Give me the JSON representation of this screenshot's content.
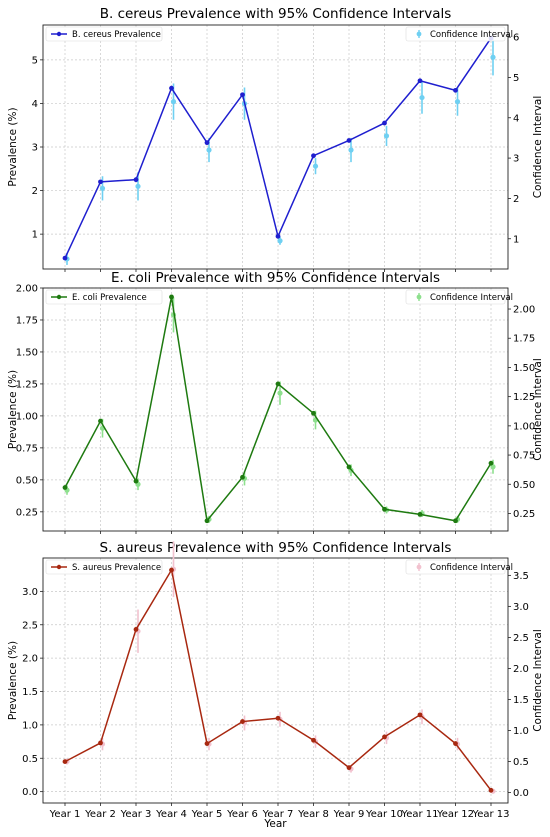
{
  "chart_data": [
    {
      "type": "line",
      "title": "B. cereus Prevalence with 95% Confidence Intervals",
      "xlabel": "",
      "ylabel": "Prevalence (%)",
      "ylabel_right": "Confidence Interval",
      "categories": [
        "Year 1",
        "Year 2",
        "Year 3",
        "Year 4",
        "Year 5",
        "Year 6",
        "Year 7",
        "Year 8",
        "Year 9",
        "Year 10",
        "Year 11",
        "Year 12",
        "Year 13"
      ],
      "series": [
        {
          "name": "B. cereus Prevalence",
          "values": [
            0.45,
            2.2,
            2.25,
            4.35,
            3.1,
            4.2,
            0.95,
            2.8,
            3.15,
            3.55,
            4.52,
            4.3,
            5.5
          ]
        }
      ],
      "ci": {
        "name": "Confidence Interval",
        "values": [
          0.5,
          2.25,
          2.3,
          4.4,
          3.2,
          4.35,
          0.95,
          2.8,
          3.2,
          3.55,
          4.5,
          4.4,
          5.5
        ],
        "errors": [
          0.15,
          0.3,
          0.35,
          0.45,
          0.3,
          0.4,
          0.1,
          0.2,
          0.3,
          0.25,
          0.4,
          0.35,
          0.45
        ]
      },
      "ylim": [
        0.2,
        5.8
      ],
      "yticks": [
        1,
        2,
        3,
        4,
        5
      ],
      "ylim_right": [
        0.25,
        6.3
      ],
      "yticks_right": [
        1,
        2,
        3,
        4,
        5,
        6
      ],
      "grid": true,
      "legend": [
        "top-left",
        "top-right"
      ],
      "colors": {
        "line": "#1f1fcf",
        "ci": "#6fd0f2"
      }
    },
    {
      "type": "line",
      "title": "E. coli Prevalence with 95% Confidence Intervals",
      "xlabel": "",
      "ylabel": "Prevalence (%)",
      "ylabel_right": "Confidence Interval",
      "categories": [
        "Year 1",
        "Year 2",
        "Year 3",
        "Year 4",
        "Year 5",
        "Year 6",
        "Year 7",
        "Year 8",
        "Year 9",
        "Year 10",
        "Year 11",
        "Year 12",
        "Year 13"
      ],
      "series": [
        {
          "name": "E. coli Prevalence",
          "values": [
            0.44,
            0.96,
            0.49,
            1.93,
            0.18,
            0.52,
            1.25,
            1.02,
            0.6,
            0.27,
            0.23,
            0.18,
            0.63
          ]
        }
      ],
      "ci": {
        "name": "Confidence Interval",
        "values": [
          0.45,
          0.98,
          0.5,
          1.95,
          0.2,
          0.55,
          1.28,
          1.05,
          0.62,
          0.28,
          0.25,
          0.2,
          0.65
        ],
        "errors": [
          0.04,
          0.08,
          0.05,
          0.15,
          0.03,
          0.06,
          0.1,
          0.08,
          0.05,
          0.03,
          0.03,
          0.03,
          0.06
        ]
      },
      "ylim": [
        0.1,
        2.0
      ],
      "yticks": [
        0.25,
        0.5,
        0.75,
        1.0,
        1.25,
        1.5,
        1.75,
        2.0
      ],
      "ylim_right": [
        0.1,
        2.18
      ],
      "yticks_right": [
        0.25,
        0.5,
        0.75,
        1.0,
        1.25,
        1.5,
        1.75,
        2.0
      ],
      "grid": true,
      "legend": [
        "top-left",
        "top-right"
      ],
      "colors": {
        "line": "#1e7a10",
        "ci": "#8ee08e"
      }
    },
    {
      "type": "line",
      "title": "S. aureus Prevalence with 95% Confidence Intervals",
      "xlabel": "Year",
      "ylabel": "Prevalence (%)",
      "ylabel_right": "Confidence Interval",
      "categories": [
        "Year 1",
        "Year 2",
        "Year 3",
        "Year 4",
        "Year 5",
        "Year 6",
        "Year 7",
        "Year 8",
        "Year 9",
        "Year 10",
        "Year 11",
        "Year 12",
        "Year 13"
      ],
      "series": [
        {
          "name": "S. aureus Prevalence",
          "values": [
            0.45,
            0.73,
            2.43,
            3.32,
            0.72,
            1.05,
            1.1,
            0.77,
            0.36,
            0.82,
            1.15,
            0.72,
            0.02
          ]
        }
      ],
      "ci": {
        "name": "Confidence Interval",
        "values": [
          0.5,
          0.78,
          2.6,
          3.6,
          0.78,
          1.12,
          1.18,
          0.82,
          0.38,
          0.88,
          1.22,
          0.78,
          0.02
        ],
        "errors": [
          0.05,
          0.1,
          0.35,
          0.45,
          0.1,
          0.12,
          0.12,
          0.1,
          0.06,
          0.1,
          0.12,
          0.1,
          0.03
        ]
      },
      "ylim": [
        -0.17,
        3.5
      ],
      "yticks": [
        0.0,
        0.5,
        1.0,
        1.5,
        2.0,
        2.5,
        3.0
      ],
      "ylim_right": [
        -0.17,
        3.78
      ],
      "yticks_right": [
        0.0,
        0.5,
        1.0,
        1.5,
        2.0,
        2.5,
        3.0,
        3.5
      ],
      "grid": true,
      "legend": [
        "top-left",
        "top-right"
      ],
      "colors": {
        "line": "#a82810",
        "ci": "#f2c2cf"
      }
    }
  ]
}
